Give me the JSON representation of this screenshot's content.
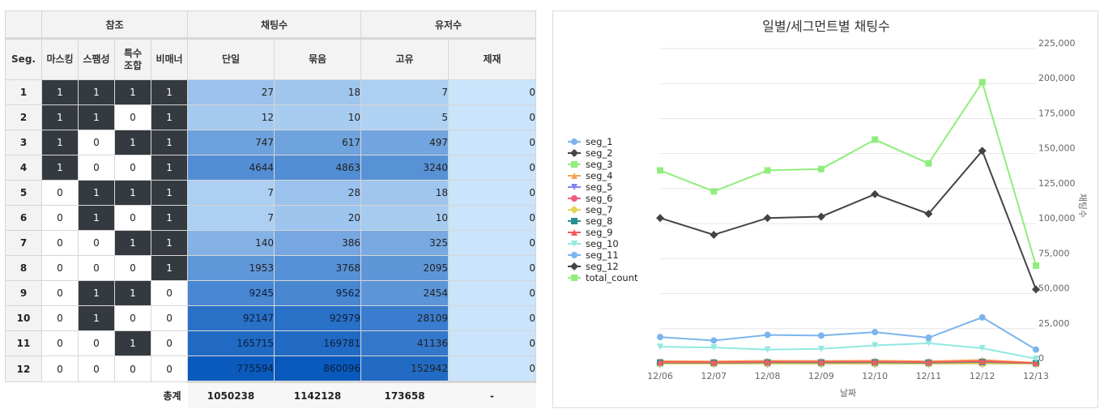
{
  "table": {
    "group_headers": {
      "ref": "참조",
      "chat": "채팅수",
      "user": "유저수"
    },
    "col_headers": {
      "seg": "Seg.",
      "masking": "마스킹",
      "spam": "스팸성",
      "special_1": "특수",
      "special_2": "조합",
      "vulgar": "비매너",
      "single": "단일",
      "bundle": "묶음",
      "unique": "고유",
      "sanction": "제재"
    },
    "rows": [
      {
        "seg": "1",
        "m": "1",
        "s": "1",
        "sp": "1",
        "v": "1",
        "single": "27",
        "bundle": "18",
        "unique": "7",
        "sanction": "0"
      },
      {
        "seg": "2",
        "m": "1",
        "s": "1",
        "sp": "0",
        "v": "1",
        "single": "12",
        "bundle": "10",
        "unique": "5",
        "sanction": "0"
      },
      {
        "seg": "3",
        "m": "1",
        "s": "0",
        "sp": "1",
        "v": "1",
        "single": "747",
        "bundle": "617",
        "unique": "497",
        "sanction": "0"
      },
      {
        "seg": "4",
        "m": "1",
        "s": "0",
        "sp": "0",
        "v": "1",
        "single": "4644",
        "bundle": "4863",
        "unique": "3240",
        "sanction": "0"
      },
      {
        "seg": "5",
        "m": "0",
        "s": "1",
        "sp": "1",
        "v": "1",
        "single": "7",
        "bundle": "28",
        "unique": "18",
        "sanction": "0"
      },
      {
        "seg": "6",
        "m": "0",
        "s": "1",
        "sp": "0",
        "v": "1",
        "single": "7",
        "bundle": "20",
        "unique": "10",
        "sanction": "0"
      },
      {
        "seg": "7",
        "m": "0",
        "s": "0",
        "sp": "1",
        "v": "1",
        "single": "140",
        "bundle": "386",
        "unique": "325",
        "sanction": "0"
      },
      {
        "seg": "8",
        "m": "0",
        "s": "0",
        "sp": "0",
        "v": "1",
        "single": "1953",
        "bundle": "3768",
        "unique": "2095",
        "sanction": "0"
      },
      {
        "seg": "9",
        "m": "0",
        "s": "1",
        "sp": "1",
        "v": "0",
        "single": "9245",
        "bundle": "9562",
        "unique": "2454",
        "sanction": "0"
      },
      {
        "seg": "10",
        "m": "0",
        "s": "1",
        "sp": "0",
        "v": "0",
        "single": "92147",
        "bundle": "92979",
        "unique": "28109",
        "sanction": "0"
      },
      {
        "seg": "11",
        "m": "0",
        "s": "0",
        "sp": "1",
        "v": "0",
        "single": "165715",
        "bundle": "169781",
        "unique": "41136",
        "sanction": "0"
      },
      {
        "seg": "12",
        "m": "0",
        "s": "0",
        "sp": "0",
        "v": "0",
        "single": "775594",
        "bundle": "860096",
        "unique": "152942",
        "sanction": "0"
      }
    ],
    "totals": {
      "label": "총계",
      "single": "1050238",
      "bundle": "1142128",
      "unique": "173658",
      "sanction": "-"
    },
    "heat_colors": {
      "low": "#c9e4fb",
      "high": "#0a59bd",
      "on": "#343a40",
      "off": "#ffffff"
    }
  },
  "chart_data": {
    "type": "line",
    "title": "일별/세그먼트별 채팅수",
    "xlabel": "날짜",
    "ylabel": "채팅수",
    "categories": [
      "12/06",
      "12/07",
      "12/08",
      "12/09",
      "12/10",
      "12/11",
      "12/12",
      "12/13"
    ],
    "ylim": [
      0,
      225000
    ],
    "yticks": [
      0,
      25000,
      50000,
      75000,
      100000,
      125000,
      150000,
      175000,
      200000,
      225000
    ],
    "ytick_labels": [
      "0",
      "25,000",
      "50,000",
      "75,000",
      "100,000",
      "125,000",
      "150,000",
      "175,000",
      "200,000",
      "225,000"
    ],
    "y_axis_position": "right",
    "legend_position": "left",
    "grid": true,
    "series": [
      {
        "name": "seg_1",
        "color": "#7cb5ec",
        "marker": "circle",
        "values": [
          10,
          8,
          12,
          9,
          11,
          7,
          14,
          3
        ]
      },
      {
        "name": "seg_2",
        "color": "#434348",
        "marker": "diamond",
        "values": [
          5,
          4,
          6,
          5,
          5,
          3,
          7,
          1
        ]
      },
      {
        "name": "seg_3",
        "color": "#90ed7d",
        "marker": "square",
        "values": [
          280,
          240,
          310,
          300,
          350,
          270,
          420,
          90
        ]
      },
      {
        "name": "seg_4",
        "color": "#f7a35c",
        "marker": "triangle",
        "values": [
          1800,
          1600,
          2000,
          1900,
          2100,
          1700,
          2600,
          600
        ]
      },
      {
        "name": "seg_5",
        "color": "#8085e9",
        "marker": "triangle-down",
        "values": [
          3,
          2,
          4,
          3,
          4,
          2,
          5,
          1
        ]
      },
      {
        "name": "seg_6",
        "color": "#f15c80",
        "marker": "circle",
        "values": [
          3,
          2,
          4,
          3,
          3,
          2,
          4,
          1
        ]
      },
      {
        "name": "seg_7",
        "color": "#e4d354",
        "marker": "diamond",
        "values": [
          60,
          50,
          70,
          65,
          75,
          55,
          90,
          20
        ]
      },
      {
        "name": "seg_8",
        "color": "#2b908f",
        "marker": "square",
        "values": [
          800,
          700,
          900,
          850,
          950,
          750,
          1200,
          300
        ]
      },
      {
        "name": "seg_9",
        "color": "#f45b5b",
        "marker": "triangle",
        "values": [
          1100,
          1000,
          1300,
          1250,
          1400,
          1100,
          1700,
          450
        ]
      },
      {
        "name": "seg_10",
        "color": "#91e8e1",
        "marker": "triangle-down",
        "values": [
          12000,
          11500,
          10000,
          10500,
          13000,
          14500,
          11000,
          3500
        ]
      },
      {
        "name": "seg_11",
        "color": "#7cb5ec",
        "marker": "circle",
        "values": [
          19000,
          16500,
          20500,
          20000,
          22500,
          18500,
          33000,
          10000
        ]
      },
      {
        "name": "seg_12",
        "color": "#434348",
        "marker": "diamond",
        "values": [
          104000,
          92000,
          104000,
          105000,
          121000,
          107000,
          152000,
          53000
        ]
      },
      {
        "name": "total_count",
        "color": "#90ed7d",
        "marker": "square",
        "values": [
          138000,
          123000,
          138000,
          139000,
          160000,
          143000,
          201000,
          70000
        ]
      }
    ]
  }
}
